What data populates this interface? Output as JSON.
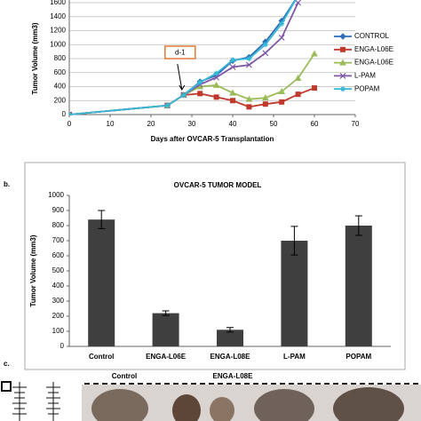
{
  "chart_data": [
    {
      "type": "line",
      "xlabel": "Days after OVCAR-5 Transplantation",
      "ylabel": "Tumor Volume (mm3)",
      "x": [
        0,
        24,
        28,
        32,
        36,
        40,
        44,
        48,
        52,
        56,
        60
      ],
      "series": [
        {
          "name": "CONTROL",
          "color": "#2e6fb7",
          "marker": "diamond",
          "values": [
            0,
            130,
            280,
            470,
            560,
            770,
            820,
            1040,
            1340,
            1700,
            null
          ]
        },
        {
          "name": "ENGA-L06E",
          "color": "#c0392b",
          "marker": "square",
          "values": [
            0,
            130,
            280,
            300,
            250,
            200,
            110,
            150,
            180,
            290,
            380
          ]
        },
        {
          "name": "ENGA-L06E",
          "color": "#9bbb59",
          "marker": "triangle",
          "values": [
            0,
            130,
            280,
            400,
            420,
            310,
            220,
            240,
            330,
            520,
            870
          ]
        },
        {
          "name": "L-PAM",
          "color": "#7e57a8",
          "marker": "cross",
          "values": [
            0,
            130,
            280,
            430,
            530,
            680,
            710,
            880,
            1100,
            1600,
            null
          ]
        },
        {
          "name": "POPAM",
          "color": "#36b8d6",
          "marker": "star",
          "values": [
            0,
            130,
            280,
            460,
            590,
            780,
            800,
            1000,
            1300,
            1700,
            null
          ]
        }
      ],
      "xlim": [
        0,
        70
      ],
      "xticks": [
        0,
        10,
        20,
        30,
        40,
        50,
        60,
        70
      ],
      "ylim": [
        0,
        1600
      ],
      "yticks": [
        0,
        200,
        400,
        600,
        800,
        1000,
        1200,
        1400,
        1600
      ],
      "grid": true,
      "annotation": {
        "text": "d-1",
        "x": 28
      }
    },
    {
      "type": "bar",
      "title": "OVCAR-5 TUMOR MODEL",
      "ylabel": "Tumor Volume (mm3)",
      "categories": [
        "Control",
        "ENGA-L06E",
        "ENGA-L08E",
        "L-PAM",
        "POPAM"
      ],
      "values": [
        840,
        220,
        110,
        700,
        800
      ],
      "errors": [
        60,
        15,
        15,
        95,
        65
      ],
      "color": "#3f3f3f",
      "ylim": [
        0,
        1000
      ],
      "yticks": [
        0,
        100,
        200,
        300,
        400,
        500,
        600,
        700,
        800,
        900,
        1000
      ]
    }
  ],
  "panel_labels": [
    "b.",
    "c."
  ],
  "photo": {
    "labels": [
      "Control",
      "ENGA-L08E"
    ]
  }
}
